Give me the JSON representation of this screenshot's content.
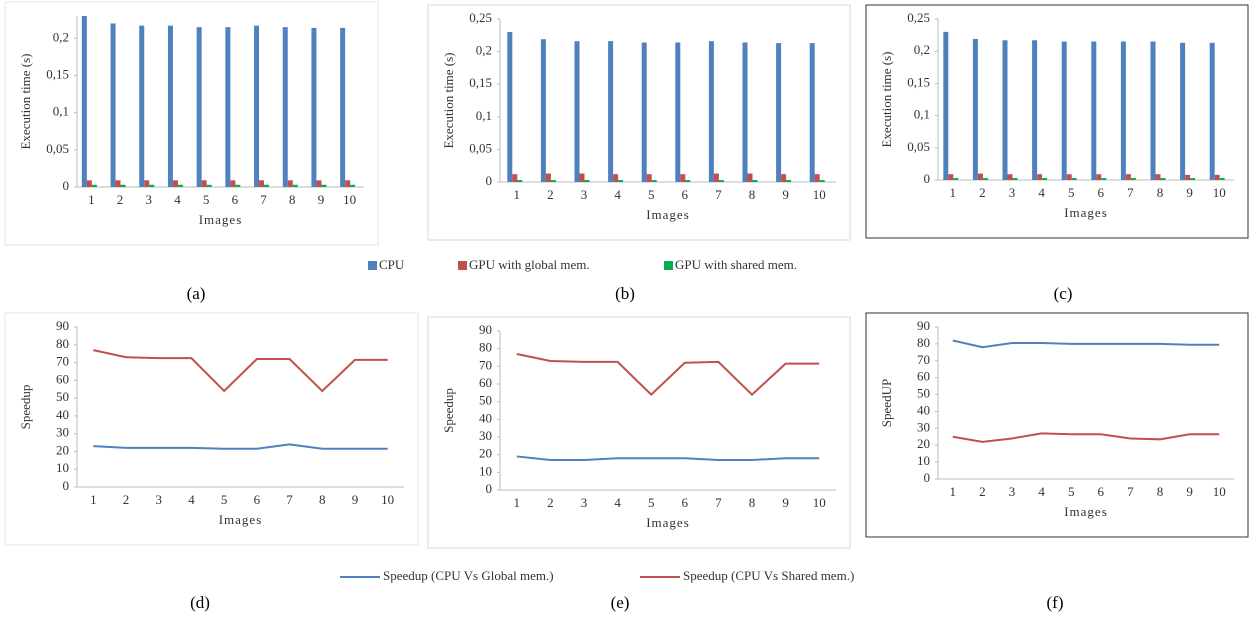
{
  "chart_data": [
    {
      "type": "bar",
      "caption": "(a)",
      "y_label": "Execution time (s)",
      "x_label": "Images",
      "categories": [
        "1",
        "2",
        "3",
        "4",
        "5",
        "6",
        "7",
        "8",
        "9",
        "10"
      ],
      "ylim": [
        0,
        0.23
      ],
      "yticks": [
        0,
        {
          "value": 0.05,
          "label": "0,05"
        },
        {
          "value": 0.1,
          "label": "0,1"
        },
        {
          "value": 0.15,
          "label": "0,15"
        },
        {
          "value": 0.2,
          "label": "0,2"
        }
      ],
      "series": [
        {
          "name": "CPU",
          "color": "#4f81bd",
          "values": [
            0.23,
            0.22,
            0.217,
            0.217,
            0.215,
            0.215,
            0.217,
            0.215,
            0.214,
            0.214
          ]
        },
        {
          "name": "GPU with global mem.",
          "color": "#c0504d",
          "values": [
            0.009,
            0.009,
            0.009,
            0.009,
            0.009,
            0.009,
            0.009,
            0.009,
            0.009,
            0.009
          ]
        },
        {
          "name": "GPU with shared mem.",
          "color": "#00b050",
          "values": [
            0.003,
            0.003,
            0.003,
            0.003,
            0.003,
            0.003,
            0.003,
            0.003,
            0.003,
            0.003
          ]
        }
      ]
    },
    {
      "type": "bar",
      "caption": "(b)",
      "y_label": "Execution time (s)",
      "x_label": "Images",
      "categories": [
        "1",
        "2",
        "3",
        "4",
        "5",
        "6",
        "7",
        "8",
        "9",
        "10"
      ],
      "ylim": [
        0,
        0.25
      ],
      "yticks": [
        0,
        {
          "value": 0.05,
          "label": "0,05"
        },
        {
          "value": 0.1,
          "label": "0,1"
        },
        {
          "value": 0.15,
          "label": "0,15"
        },
        {
          "value": 0.2,
          "label": "0,2"
        },
        {
          "value": 0.25,
          "label": "0,25"
        }
      ],
      "series": [
        {
          "color": "#4f81bd",
          "values": [
            0.23,
            0.219,
            0.216,
            0.216,
            0.214,
            0.214,
            0.216,
            0.214,
            0.213,
            0.213
          ]
        },
        {
          "color": "#c0504d",
          "values": [
            0.012,
            0.013,
            0.013,
            0.012,
            0.012,
            0.012,
            0.013,
            0.013,
            0.012,
            0.012
          ]
        },
        {
          "color": "#00b050",
          "values": [
            0.003,
            0.003,
            0.003,
            0.003,
            0.003,
            0.003,
            0.003,
            0.003,
            0.003,
            0.003
          ]
        }
      ]
    },
    {
      "type": "bar",
      "caption": "(c)",
      "y_label": "Execution time (s)",
      "x_label": "Images",
      "categories": [
        "1",
        "2",
        "3",
        "4",
        "5",
        "6",
        "7",
        "8",
        "9",
        "10"
      ],
      "ylim": [
        0,
        0.25
      ],
      "yticks": [
        0,
        {
          "value": 0.05,
          "label": "0,05"
        },
        {
          "value": 0.1,
          "label": "0,1"
        },
        {
          "value": 0.15,
          "label": "0,15"
        },
        {
          "value": 0.2,
          "label": "0,2"
        },
        {
          "value": 0.25,
          "label": "0,25"
        }
      ],
      "series": [
        {
          "color": "#4f81bd",
          "values": [
            0.23,
            0.219,
            0.217,
            0.217,
            0.215,
            0.215,
            0.215,
            0.215,
            0.213,
            0.213
          ]
        },
        {
          "color": "#c0504d",
          "values": [
            0.009,
            0.01,
            0.009,
            0.009,
            0.009,
            0.009,
            0.009,
            0.009,
            0.008,
            0.008
          ]
        },
        {
          "color": "#00b050",
          "values": [
            0.003,
            0.003,
            0.003,
            0.003,
            0.003,
            0.003,
            0.003,
            0.003,
            0.003,
            0.003
          ]
        }
      ]
    },
    {
      "type": "line",
      "caption": "(d)",
      "y_label": "Speedup",
      "x_label": "Images",
      "categories": [
        "1",
        "2",
        "3",
        "4",
        "5",
        "6",
        "7",
        "8",
        "9",
        "10"
      ],
      "ylim": [
        0,
        90
      ],
      "yticks": [
        0,
        10,
        20,
        30,
        40,
        50,
        60,
        70,
        80,
        90
      ],
      "series": [
        {
          "name": "Speedup (CPU Vs Global mem.)",
          "color": "#4f81bd",
          "values": [
            23,
            22,
            22,
            22,
            21.5,
            21.5,
            24,
            21.5,
            21.5,
            21.5
          ]
        },
        {
          "name": "Speedup (CPU Vs Shared mem.)",
          "color": "#c0504d",
          "values": [
            77,
            73,
            72.5,
            72.5,
            54,
            72,
            72,
            54,
            71.5,
            71.5
          ]
        }
      ]
    },
    {
      "type": "line",
      "caption": "(e)",
      "y_label": "Speedup",
      "x_label": "Images",
      "categories": [
        "1",
        "2",
        "3",
        "4",
        "5",
        "6",
        "7",
        "8",
        "9",
        "10"
      ],
      "ylim": [
        0,
        90
      ],
      "yticks": [
        0,
        10,
        20,
        30,
        40,
        50,
        60,
        70,
        80,
        90
      ],
      "series": [
        {
          "color": "#4f81bd",
          "values": [
            19,
            17,
            17,
            18,
            18,
            18,
            17,
            17,
            18,
            18
          ]
        },
        {
          "color": "#c0504d",
          "values": [
            77,
            73,
            72.5,
            72.5,
            54,
            72,
            72.5,
            54,
            71.5,
            71.5
          ]
        }
      ]
    },
    {
      "type": "line",
      "caption": "(f)",
      "y_label": "SpeedUP",
      "x_label": "Images",
      "categories": [
        "1",
        "2",
        "3",
        "4",
        "5",
        "6",
        "7",
        "8",
        "9",
        "10"
      ],
      "ylim": [
        0,
        90
      ],
      "yticks": [
        0,
        10,
        20,
        30,
        40,
        50,
        60,
        70,
        80,
        90
      ],
      "series": [
        {
          "color": "#4f81bd",
          "values": [
            82,
            78,
            80.5,
            80.5,
            80,
            80,
            80,
            80,
            79.5,
            79.5
          ]
        },
        {
          "color": "#c0504d",
          "values": [
            25,
            22,
            24,
            27,
            26.5,
            26.5,
            24,
            23.5,
            26.5,
            26.5
          ]
        }
      ]
    }
  ]
}
